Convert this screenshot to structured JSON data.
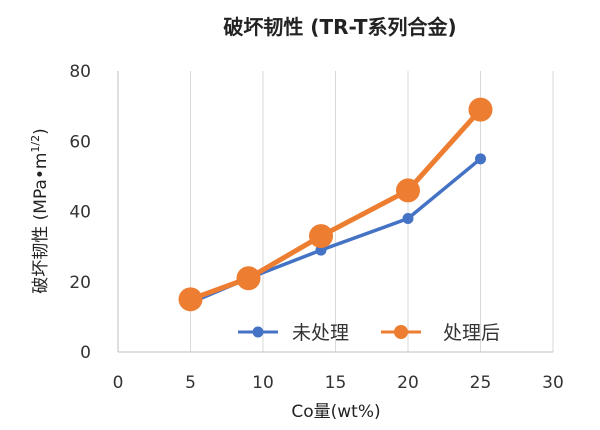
{
  "chart_data": {
    "type": "line",
    "title": "破坏韧性 (TR-T系列合金)",
    "xlabel": "Co量(wt%)",
    "ylabel": {
      "main": "破坏韧性 (MPa•m",
      "sup": "1/2",
      "close": ")"
    },
    "xlim": [
      0,
      30
    ],
    "ylim": [
      0,
      80
    ],
    "xticks": [
      0,
      5,
      10,
      15,
      20,
      25,
      30
    ],
    "yticks": [
      0,
      20,
      40,
      60,
      80
    ],
    "grid": {
      "vertical": true,
      "horizontal": false
    },
    "legend_position": "bottom-right",
    "series": [
      {
        "name": "未处理",
        "color": "#4472C4",
        "marker": "small-circle",
        "points": [
          {
            "x": 5,
            "y": 14
          },
          {
            "x": 9,
            "y": 21
          },
          {
            "x": 14,
            "y": 29
          },
          {
            "x": 20,
            "y": 38
          },
          {
            "x": 25,
            "y": 55
          }
        ]
      },
      {
        "name": "处理后",
        "color": "#ED7D31",
        "marker": "large-circle",
        "points": [
          {
            "x": 5,
            "y": 15
          },
          {
            "x": 9,
            "y": 21
          },
          {
            "x": 14,
            "y": 33
          },
          {
            "x": 20,
            "y": 46
          },
          {
            "x": 25,
            "y": 69
          }
        ]
      }
    ]
  }
}
